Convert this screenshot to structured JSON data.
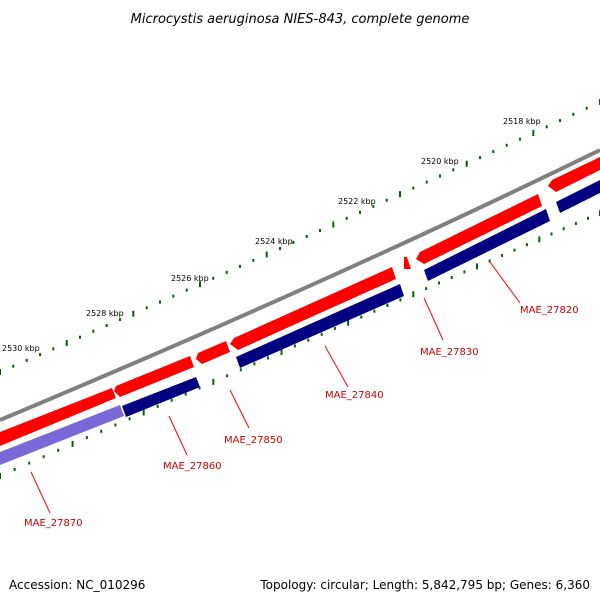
{
  "title": "Microcystis aeruginosa NIES-843, complete genome",
  "footer": {
    "accession": "Accession: NC_010296",
    "summary": "Topology: circular; Length: 5,842,795 bp; Genes: 6,360"
  },
  "colors": {
    "backbone": "#808080",
    "forward_strand": "#ff0000",
    "reverse_strand": "#000080",
    "reverse_strand_faded": "#7b68d8",
    "tick": "#006400",
    "gene_label": "#cc0000"
  },
  "tick_labels": [
    "2518 kbp",
    "2520 kbp",
    "2522 kbp",
    "2524 kbp",
    "2526 kbp",
    "2528 kbp",
    "2530 kbp"
  ],
  "genes": [
    {
      "name": "MAE_27820",
      "strand": "-"
    },
    {
      "name": "MAE_27830",
      "strand": "+"
    },
    {
      "name": "MAE_27840",
      "strand": "-"
    },
    {
      "name": "MAE_27850",
      "strand": "+"
    },
    {
      "name": "MAE_27860",
      "strand": "-"
    },
    {
      "name": "MAE_27870",
      "strand": "-"
    }
  ]
}
